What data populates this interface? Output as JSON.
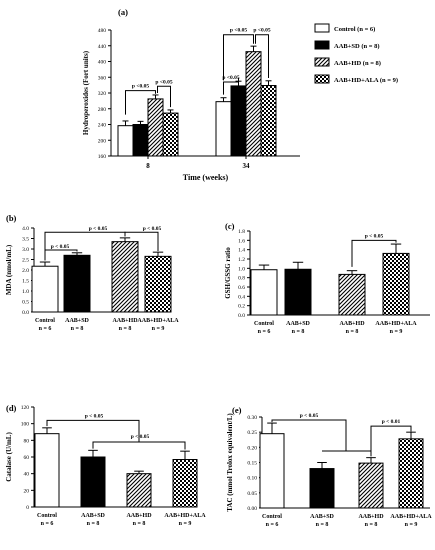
{
  "figure": {
    "colors": {
      "ink": "#000000",
      "fill_white": "#ffffff",
      "fill_black": "#000000"
    },
    "legend_entries": [
      "Control (n = 6)",
      "AAB+SD (n = 8)",
      "AAB+HD (n = 8)",
      "AAB+HD+ALA (n = 9)"
    ]
  },
  "chart_data": [
    {
      "id": "a",
      "type": "bar",
      "panel_label": "(a)",
      "ylabel": "Hydroperoxides (Fort units)",
      "xlabel": "Time (weeks)",
      "ylim": [
        160,
        480
      ],
      "yticks": [
        160,
        200,
        240,
        280,
        320,
        360,
        400,
        440,
        480
      ],
      "categories": [
        "8",
        "34"
      ],
      "series": [
        {
          "name": "Control (n = 6)",
          "values": [
            237,
            298
          ],
          "errors": [
            12,
            10
          ]
        },
        {
          "name": "AAB+SD (n = 8)",
          "values": [
            240,
            338
          ],
          "errors": [
            8,
            12
          ]
        },
        {
          "name": "AAB+HD (n = 8)",
          "values": [
            305,
            425
          ],
          "errors": [
            10,
            14
          ]
        },
        {
          "name": "AAB+HD+ALA (n = 9)",
          "values": [
            269,
            339
          ],
          "errors": [
            8,
            12
          ]
        }
      ],
      "annotations": [
        "p <0.05",
        "p <0.05",
        "p <0.05",
        "p <0.05",
        "p <0.05"
      ],
      "legend": "right"
    },
    {
      "id": "b",
      "type": "bar",
      "panel_label": "(b)",
      "ylabel": "MDA (nmol/mL)",
      "ylim": [
        0,
        4.0
      ],
      "yticks": [
        "0.0",
        "0.5",
        "1.0",
        "1.5",
        "2.0",
        "2.5",
        "3.0",
        "3.5",
        "4.0"
      ],
      "categories": [
        "Control",
        "AAB+SD",
        "AAB+HD",
        "AAB+HD+ALA"
      ],
      "n_labels": [
        "n = 6",
        "n = 8",
        "n = 8",
        "n = 9"
      ],
      "values": [
        2.18,
        2.7,
        3.35,
        2.65
      ],
      "errors": [
        0.2,
        0.12,
        0.18,
        0.2
      ],
      "annotations": [
        "p < 0.05",
        "p < 0.05",
        "p < 0.05"
      ]
    },
    {
      "id": "c",
      "type": "bar",
      "panel_label": "(c)",
      "ylabel": "GSH/GSSG ratio",
      "ylim": [
        0,
        1.8
      ],
      "yticks": [
        "0.0",
        "0.2",
        "0.4",
        "0.6",
        "0.8",
        "1.0",
        "1.2",
        "1.4",
        "1.6",
        "1.8"
      ],
      "categories": [
        "Control",
        "AAB+SD",
        "AAB+HD",
        "AAB+HD+ALA"
      ],
      "n_labels": [
        "n = 6",
        "n = 8",
        "n = 8",
        "n = 9"
      ],
      "values": [
        0.97,
        0.98,
        0.87,
        1.32
      ],
      "errors": [
        0.1,
        0.15,
        0.08,
        0.2
      ],
      "annotations": [
        "p < 0.05"
      ]
    },
    {
      "id": "d",
      "type": "bar",
      "panel_label": "(d)",
      "ylabel": "Catalase (U/mL)",
      "ylim": [
        0,
        120
      ],
      "yticks": [
        "0",
        "20",
        "40",
        "60",
        "80",
        "100",
        "120"
      ],
      "categories": [
        "Control",
        "AAB+SD",
        "AAB+HD",
        "AAB+HD+ALA"
      ],
      "n_labels": [
        "n = 6",
        "n = 8",
        "n = 8",
        "n = 9"
      ],
      "values": [
        88,
        60,
        40,
        57
      ],
      "errors": [
        7,
        8,
        3,
        10
      ],
      "annotations": [
        "p < 0.05",
        "p < 0.05"
      ]
    },
    {
      "id": "e",
      "type": "bar",
      "panel_label": "(e)",
      "ylabel": "TAC (mmol Trolox equivalent/L)",
      "ylim": [
        0,
        0.3
      ],
      "yticks": [
        "0.00",
        "0.05",
        "0.10",
        "0.15",
        "0.20",
        "0.25",
        "0.30"
      ],
      "categories": [
        "Control",
        "AAB+SD",
        "AAB+HD",
        "AAB+HD+ALA"
      ],
      "n_labels": [
        "n = 6",
        "n = 8",
        "n = 8",
        "n = 9"
      ],
      "values": [
        0.245,
        0.13,
        0.148,
        0.228
      ],
      "errors": [
        0.035,
        0.02,
        0.018,
        0.022
      ],
      "annotations": [
        "p < 0.05",
        "p < 0.01"
      ]
    }
  ]
}
